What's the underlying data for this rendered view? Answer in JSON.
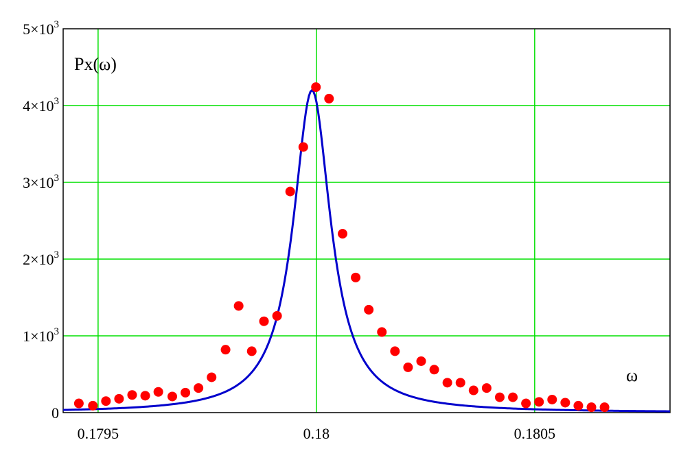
{
  "chart_data": {
    "type": "scatter",
    "ylabel": "Px(ω)",
    "xlabel": "ω",
    "xlim": [
      0.17942,
      0.18081
    ],
    "ylim": [
      0,
      5000
    ],
    "grid": true,
    "x_ticks": [
      0.1795,
      0.18,
      0.1805
    ],
    "x_tick_labels": [
      "0.1795",
      "0.18",
      "0.1805"
    ],
    "y_ticks": [
      0,
      1000,
      2000,
      3000,
      4000,
      5000
    ],
    "y_tick_labels": [
      {
        "mantissa": "0",
        "exp": ""
      },
      {
        "mantissa": "1×10",
        "exp": "3"
      },
      {
        "mantissa": "2×10",
        "exp": "3"
      },
      {
        "mantissa": "3×10",
        "exp": "3"
      },
      {
        "mantissa": "4×10",
        "exp": "3"
      },
      {
        "mantissa": "5×10",
        "exp": "3"
      }
    ],
    "colors": {
      "grid": "#00e000",
      "points": "#ff0000",
      "curve": "#0000cc",
      "axes": "#000000"
    },
    "series": [
      {
        "kind": "points",
        "x": [
          0.179456,
          0.179488,
          0.179518,
          0.179548,
          0.179578,
          0.179608,
          0.179638,
          0.17967,
          0.1797,
          0.17973,
          0.17976,
          0.179792,
          0.179822,
          0.179852,
          0.17988,
          0.17991,
          0.17994,
          0.17997,
          0.179999,
          0.180029,
          0.18006,
          0.18009,
          0.18012,
          0.18015,
          0.18018,
          0.18021,
          0.18024,
          0.18027,
          0.1803,
          0.18033,
          0.18036,
          0.18039,
          0.18042,
          0.18045,
          0.18048,
          0.18051,
          0.18054,
          0.18057,
          0.1806,
          0.18063,
          0.18066
        ],
        "y": [
          120,
          90,
          150,
          180,
          230,
          220,
          270,
          210,
          260,
          320,
          460,
          820,
          1390,
          800,
          1190,
          1260,
          2880,
          3460,
          4240,
          4090,
          2330,
          1760,
          1340,
          1050,
          800,
          590,
          670,
          560,
          390,
          390,
          290,
          320,
          200,
          200,
          120,
          140,
          170,
          130,
          90,
          70,
          70
        ]
      },
      {
        "kind": "curve",
        "model": "lorentzian",
        "peak_x": 0.17999,
        "peak_y": 4200,
        "half_width": 5.22e-05,
        "x_start": 0.17942,
        "x_end": 0.18081
      }
    ]
  }
}
